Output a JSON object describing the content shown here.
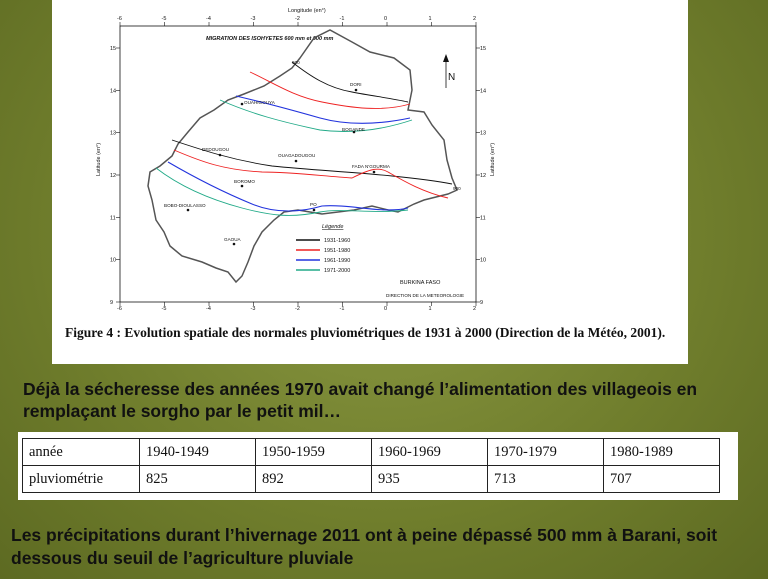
{
  "figure": {
    "map_title": "MIGRATION DES ISOHYETES  600 mm  et  900 mm",
    "longitude_label": "Longitude (en°)",
    "latitude_label": "Latitude (en°)",
    "lon_ticks": [
      "-6",
      "-5",
      "-4",
      "-3",
      "-2",
      "-1",
      "0",
      "1",
      "2"
    ],
    "lat_ticks": [
      "15",
      "14",
      "13",
      "12",
      "11",
      "10",
      "9"
    ],
    "north_label": "N",
    "cities": [
      "DORI",
      "OUAHIGOUYA",
      "BOGANDE",
      "DEDOUGOU",
      "OUAGADOUGOU",
      "FADA N'GOURMA",
      "BOROMO",
      "BOBO-DIOULASSO",
      "PO",
      "GAOUA"
    ],
    "isohyet_labels": [
      "600",
      "900"
    ],
    "legend_title": "Légende",
    "legend": [
      {
        "label": "1931-1960",
        "color": "#111111"
      },
      {
        "label": "1951-1980",
        "color": "#ee2222"
      },
      {
        "label": "1961-1990",
        "color": "#2233dd"
      },
      {
        "label": "1971-2000",
        "color": "#22aa88"
      }
    ],
    "country_label": "BURKINA FASO",
    "source_label": "DIRECTION DE LA METEOROLOGIE",
    "caption": "Figure 4 : Evolution spatiale des normales pluviométriques de 1931 à 2000 (Direction de la Météo, 2001)."
  },
  "text1": "Déjà la sécheresse des années 1970 avait changé l’alimentation des villageois en remplaçant le sorgho par le petit mil…",
  "table": {
    "row1_label": "année",
    "row2_label": "pluviométrie",
    "periods": [
      "1940-1949",
      "1950-1959",
      "1960-1969",
      "1970-1979",
      "1980-1989"
    ],
    "values": [
      "825",
      "892",
      "935",
      "713",
      "707"
    ]
  },
  "text2": "Les précipitations durant l’hivernage 2011 ont à peine dépassé 500 mm à Barani, soit dessous du seuil de l’agriculture pluviale"
}
